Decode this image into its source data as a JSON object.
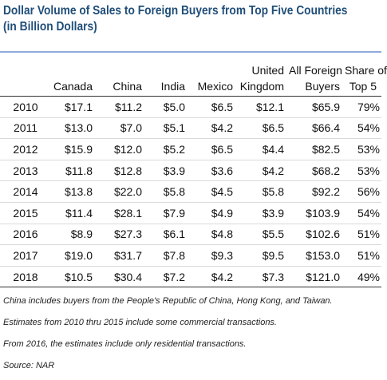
{
  "chart_data": {
    "type": "table",
    "title": "Dollar Volume of Sales to Foreign Buyers from Top Five Countries",
    "subtitle": "(in Billion Dollars)",
    "columns": [
      "",
      "Canada",
      "China",
      "India",
      "Mexico",
      "United Kingdom",
      "All Foreign Buyers",
      "Share of Top 5"
    ],
    "header_lines": [
      [
        "",
        ""
      ],
      [
        "",
        "Canada"
      ],
      [
        "",
        "China"
      ],
      [
        "",
        "India"
      ],
      [
        "",
        "Mexico"
      ],
      [
        "United",
        "Kingdom"
      ],
      [
        "All Foreign",
        "Buyers"
      ],
      [
        "Share of",
        "Top 5"
      ]
    ],
    "rows": [
      [
        "2010",
        "$17.1",
        "$11.2",
        "$5.0",
        "$6.5",
        "$12.1",
        "$65.9",
        "79%"
      ],
      [
        "2011",
        "$13.0",
        "$7.0",
        "$5.1",
        "$4.2",
        "$6.5",
        "$66.4",
        "54%"
      ],
      [
        "2012",
        "$15.9",
        "$12.0",
        "$5.2",
        "$6.5",
        "$4.4",
        "$82.5",
        "53%"
      ],
      [
        "2013",
        "$11.8",
        "$12.8",
        "$3.9",
        "$3.6",
        "$4.2",
        "$68.2",
        "53%"
      ],
      [
        "2014",
        "$13.8",
        "$22.0",
        "$5.8",
        "$4.5",
        "$5.8",
        "$92.2",
        "56%"
      ],
      [
        "2015",
        "$11.4",
        "$28.1",
        "$7.9",
        "$4.9",
        "$3.9",
        "$103.9",
        "54%"
      ],
      [
        "2016",
        "$8.9",
        "$27.3",
        "$6.1",
        "$4.8",
        "$5.5",
        "$102.6",
        "51%"
      ],
      [
        "2017",
        "$19.0",
        "$31.7",
        "$7.8",
        "$9.3",
        "$9.5",
        "$153.0",
        "51%"
      ],
      [
        "2018",
        "$10.5",
        "$30.4",
        "$7.2",
        "$4.2",
        "$7.3",
        "$121.0",
        "49%"
      ]
    ],
    "notes": [
      "China includes buyers from the People's Republic of China, Hong Kong, and Taiwan.",
      "Estimates from 2010 thru 2015 include some commercial transactions.",
      "From 2016, the estimates include only residential transactions.",
      "Source: NAR"
    ]
  },
  "colors": {
    "title": "#1f4e79",
    "title_rule": "#8eaadb",
    "text": "#111111",
    "row_rule": "#d9d9d9"
  }
}
